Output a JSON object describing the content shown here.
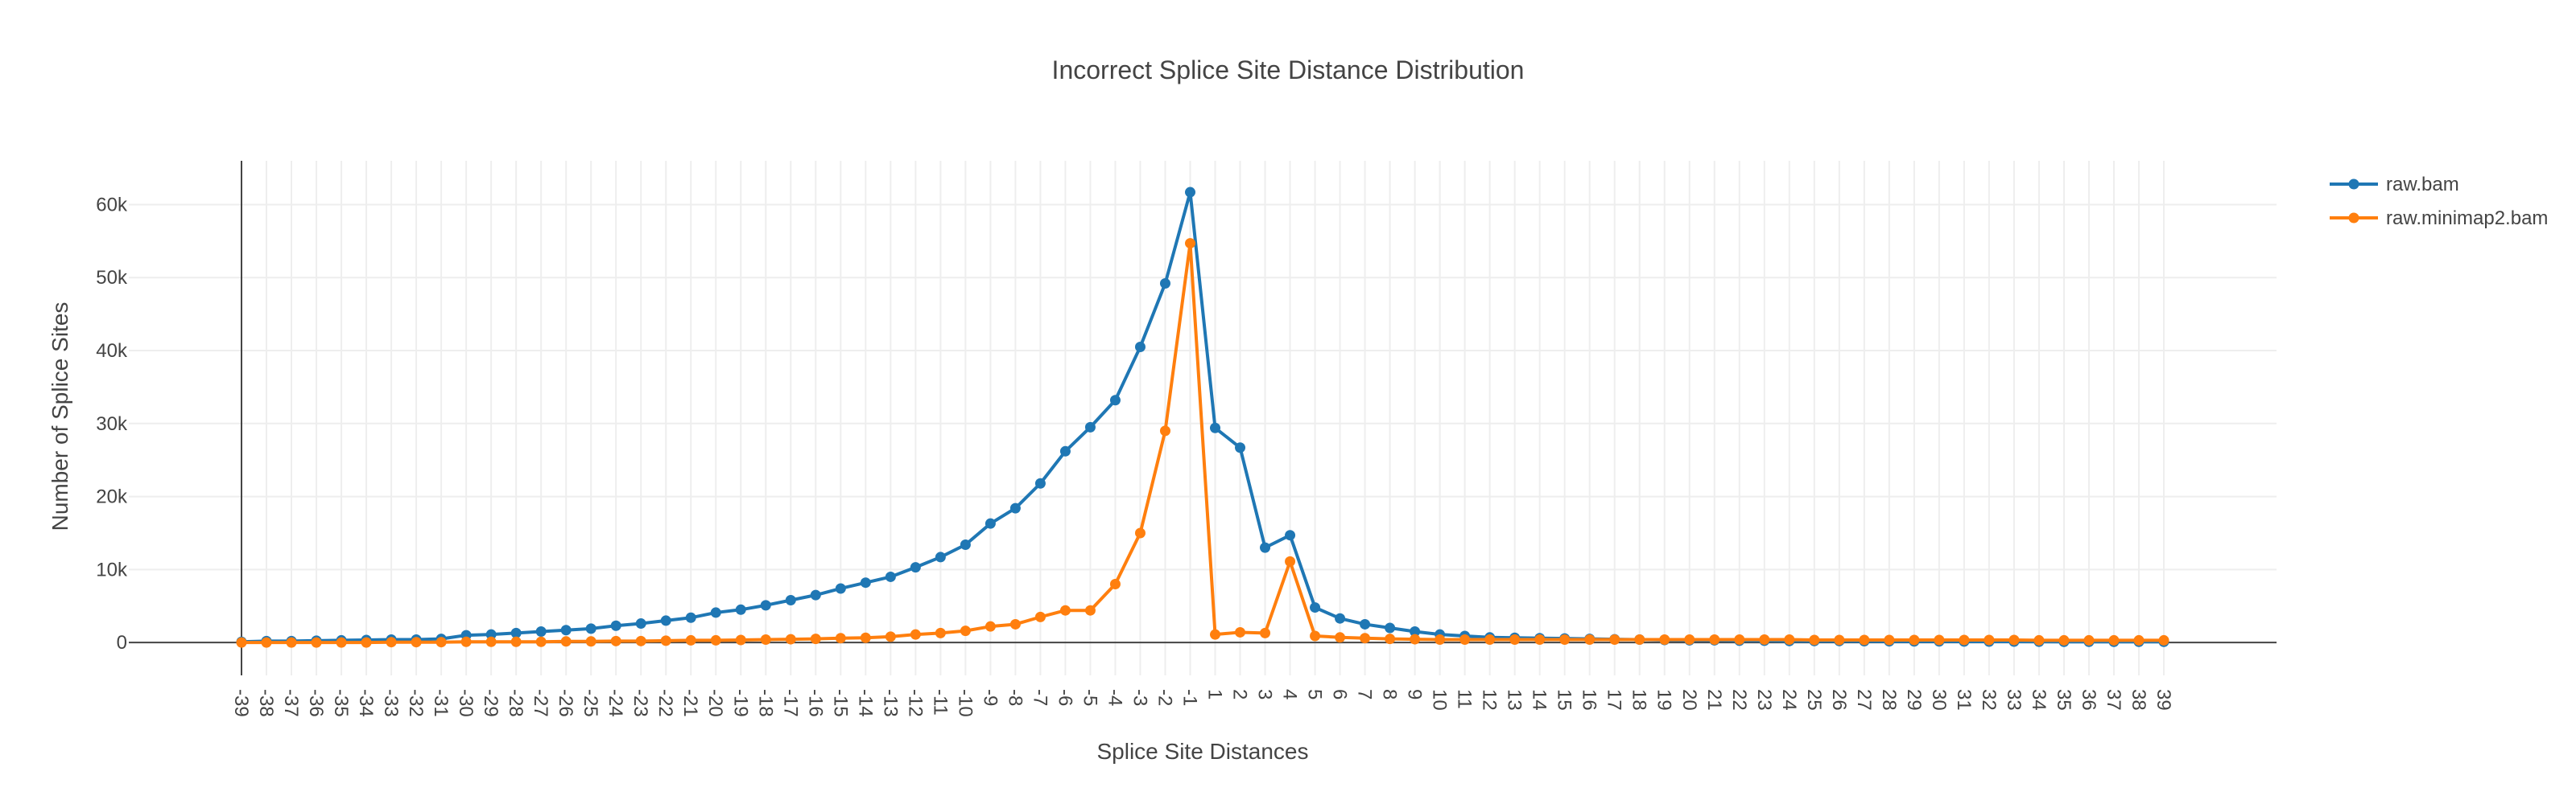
{
  "chart_data": {
    "type": "line",
    "title": "Incorrect Splice Site Distance Distribution",
    "xlabel": "Splice Site Distances",
    "ylabel": "Number of Splice Sites",
    "categories": [
      "-39",
      "-38",
      "-37",
      "-36",
      "-35",
      "-34",
      "-33",
      "-32",
      "-31",
      "-30",
      "-29",
      "-28",
      "-27",
      "-26",
      "-25",
      "-24",
      "-23",
      "-22",
      "-21",
      "-20",
      "-19",
      "-18",
      "-17",
      "-16",
      "-15",
      "-14",
      "-13",
      "-12",
      "-11",
      "-10",
      "-9",
      "-8",
      "-7",
      "-6",
      "-5",
      "-4",
      "-3",
      "-2",
      "-1",
      "1",
      "2",
      "3",
      "4",
      "5",
      "6",
      "7",
      "8",
      "9",
      "10",
      "11",
      "12",
      "13",
      "14",
      "15",
      "16",
      "17",
      "18",
      "19",
      "20",
      "21",
      "22",
      "23",
      "24",
      "25",
      "26",
      "27",
      "28",
      "29",
      "30",
      "31",
      "32",
      "33",
      "34",
      "35",
      "36",
      "37",
      "38",
      "39"
    ],
    "ylim": [
      -4500,
      66000
    ],
    "yticks": [
      0,
      10000,
      20000,
      30000,
      40000,
      50000,
      60000
    ],
    "yticklabels": [
      "0",
      "10k",
      "20k",
      "30k",
      "40k",
      "50k",
      "60k"
    ],
    "grid": true,
    "legend_position": "top-right",
    "series": [
      {
        "name": "raw.bam",
        "color": "#1f77b4",
        "values": [
          100,
          200,
          200,
          250,
          300,
          350,
          400,
          400,
          500,
          1000,
          1100,
          1300,
          1500,
          1700,
          1900,
          2300,
          2600,
          3000,
          3400,
          4100,
          4500,
          5100,
          5800,
          6500,
          7400,
          8200,
          9000,
          10300,
          11700,
          13400,
          16300,
          18400,
          21800,
          26200,
          29500,
          33200,
          40500,
          49200,
          61700,
          29400,
          26700,
          13000,
          14700,
          4800,
          3300,
          2500,
          2000,
          1500,
          1100,
          900,
          700,
          650,
          600,
          550,
          500,
          450,
          400,
          350,
          300,
          300,
          250,
          250,
          200,
          200,
          200,
          180,
          160,
          150,
          150,
          140,
          130,
          120,
          110,
          100,
          100,
          100,
          100,
          100
        ]
      },
      {
        "name": "raw.minimap2.bam",
        "color": "#ff7f0e",
        "values": [
          0,
          0,
          0,
          0,
          0,
          0,
          50,
          50,
          50,
          100,
          100,
          100,
          100,
          150,
          150,
          200,
          200,
          250,
          300,
          300,
          350,
          400,
          450,
          500,
          600,
          650,
          800,
          1100,
          1300,
          1600,
          2200,
          2500,
          3500,
          4400,
          4400,
          8000,
          15000,
          29000,
          54700,
          1100,
          1400,
          1300,
          11100,
          900,
          700,
          600,
          500,
          450,
          400,
          400,
          400,
          400,
          400,
          400,
          400,
          400,
          400,
          400,
          400,
          400,
          400,
          400,
          400,
          350,
          350,
          350,
          350,
          350,
          350,
          350,
          350,
          350,
          300,
          300,
          300,
          300,
          300,
          300
        ]
      }
    ]
  }
}
